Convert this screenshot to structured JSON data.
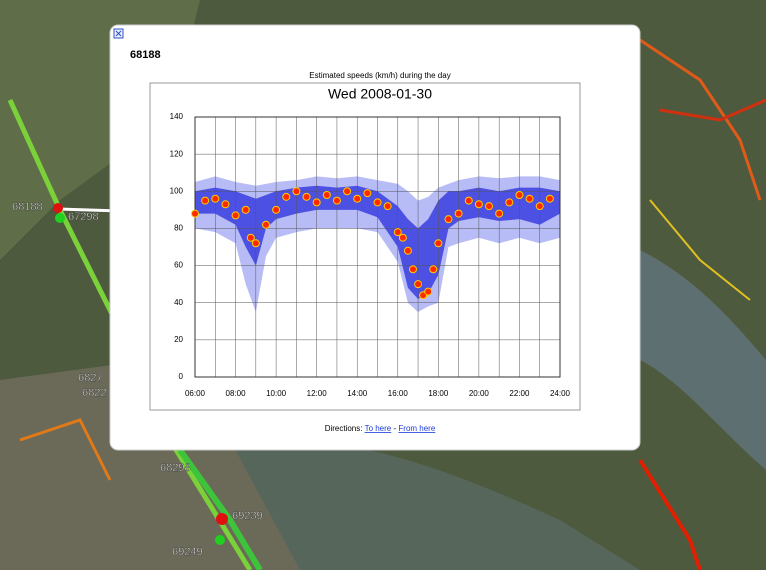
{
  "popup": {
    "id": "68188",
    "directions": {
      "label": "Directions:",
      "to": "To here",
      "separator": "-",
      "from": "From here"
    }
  },
  "map": {
    "labels": [
      "68188",
      "67298",
      "6827",
      "6822",
      "68298",
      "69239",
      "69249"
    ]
  },
  "chart_data": {
    "type": "scatter",
    "title": "Estimated speeds (km/h) during the day",
    "subtitle": "Wed 2008-01-30",
    "xlim": [
      6,
      24
    ],
    "xticks": [
      {
        "value": 6,
        "label": "06:00"
      },
      {
        "value": 8,
        "label": "08:00"
      },
      {
        "value": 10,
        "label": "10:00"
      },
      {
        "value": 12,
        "label": "12:00"
      },
      {
        "value": 14,
        "label": "14:00"
      },
      {
        "value": 16,
        "label": "16:00"
      },
      {
        "value": 18,
        "label": "18:00"
      },
      {
        "value": 20,
        "label": "20:00"
      },
      {
        "value": 22,
        "label": "22:00"
      },
      {
        "value": 24,
        "label": "24:00"
      }
    ],
    "xminorticks": [
      7,
      9,
      11,
      13,
      15,
      17,
      19,
      21,
      23
    ],
    "ylim": [
      0,
      140
    ],
    "yticks": [
      0,
      20,
      40,
      60,
      80,
      100,
      120,
      140
    ],
    "grid": true,
    "bands": [
      {
        "color": "#aab0f5",
        "x": [
          6,
          7,
          8,
          8.5,
          9,
          9.5,
          10,
          11,
          12,
          13,
          14,
          15,
          16,
          16.5,
          17,
          17.5,
          18,
          18.5,
          19,
          20,
          21,
          22,
          23,
          24
        ],
        "upper": [
          105,
          108,
          105,
          104,
          103,
          104,
          105,
          106,
          108,
          107,
          108,
          106,
          104,
          100,
          95,
          97,
          102,
          104,
          106,
          108,
          107,
          108,
          108,
          106
        ],
        "lower": [
          80,
          78,
          72,
          50,
          35,
          65,
          75,
          78,
          80,
          80,
          80,
          78,
          62,
          40,
          35,
          38,
          40,
          70,
          72,
          75,
          72,
          75,
          72,
          75
        ]
      },
      {
        "color": "#3a3ee0",
        "x": [
          6,
          7,
          8,
          8.5,
          9,
          9.5,
          10,
          11,
          12,
          13,
          14,
          15,
          16,
          16.5,
          17,
          17.5,
          18,
          18.5,
          19,
          20,
          21,
          22,
          23,
          24
        ],
        "upper": [
          100,
          102,
          100,
          98,
          96,
          98,
          100,
          102,
          103,
          102,
          103,
          100,
          92,
          85,
          80,
          85,
          95,
          100,
          100,
          102,
          100,
          102,
          102,
          100
        ],
        "lower": [
          88,
          88,
          82,
          70,
          60,
          80,
          85,
          88,
          90,
          90,
          90,
          86,
          70,
          48,
          42,
          45,
          55,
          80,
          84,
          86,
          84,
          85,
          82,
          88
        ]
      }
    ],
    "x": [
      6,
      6.5,
      7,
      7.5,
      8,
      8.5,
      8.75,
      9,
      9.5,
      10,
      10.5,
      11,
      11.5,
      12,
      12.5,
      13,
      13.5,
      14,
      14.5,
      15,
      15.5,
      16,
      16.25,
      16.5,
      16.75,
      17,
      17.25,
      17.5,
      17.75,
      18,
      18.5,
      19,
      19.5,
      20,
      20.5,
      21,
      21.5,
      22,
      22.5,
      23,
      23.5
    ],
    "values": [
      88,
      95,
      96,
      93,
      87,
      90,
      75,
      72,
      82,
      90,
      97,
      100,
      97,
      94,
      98,
      95,
      100,
      96,
      99,
      94,
      92,
      78,
      75,
      68,
      58,
      50,
      44,
      46,
      58,
      72,
      85,
      88,
      95,
      93,
      92,
      88,
      94,
      98,
      96,
      92,
      96
    ],
    "color": "#ff2a00"
  }
}
